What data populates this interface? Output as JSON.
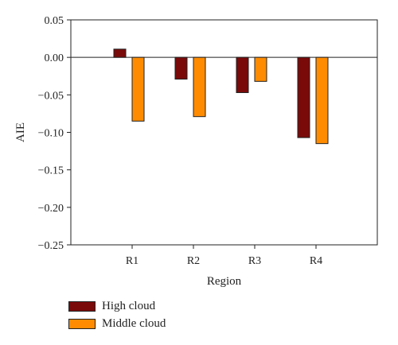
{
  "chart_data": {
    "type": "bar",
    "categories": [
      "R1",
      "R2",
      "R3",
      "R4"
    ],
    "series": [
      {
        "name": "High cloud",
        "values": [
          0.011,
          -0.029,
          -0.047,
          -0.107
        ],
        "color": "#7a0a0a"
      },
      {
        "name": "Middle cloud",
        "values": [
          -0.085,
          -0.079,
          -0.032,
          -0.115
        ],
        "color": "#ff8c00"
      }
    ],
    "xlabel": "Region",
    "ylabel": "AIE",
    "ylim": [
      -0.25,
      0.05
    ],
    "yticks": [
      "0.05",
      "0.00",
      "−0.05",
      "−0.10",
      "−0.15",
      "−0.20",
      "−0.25"
    ],
    "grid": false,
    "legend_position": "bottom-left"
  }
}
